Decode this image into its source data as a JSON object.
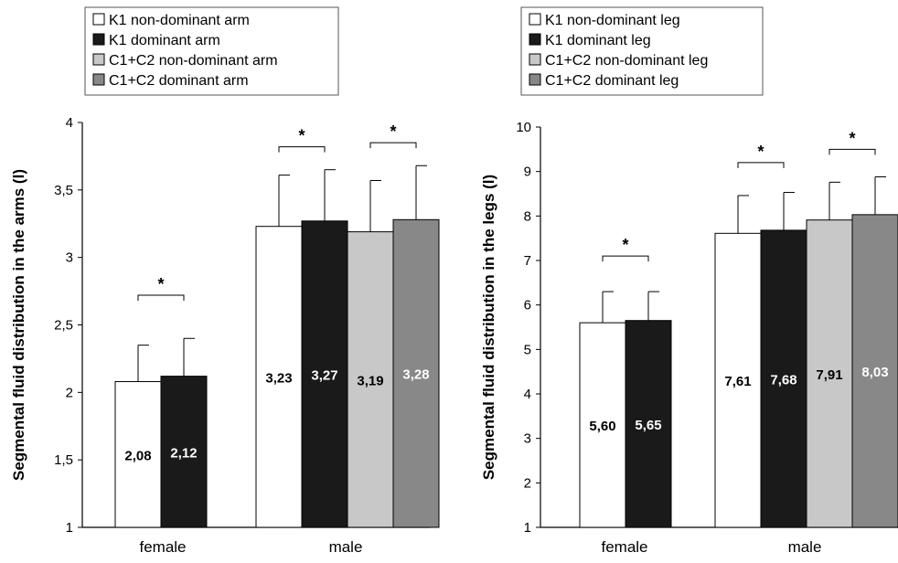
{
  "chart_data": [
    {
      "type": "bar",
      "panel": "arms",
      "ylabel": "Segmental fluid distribution in the arms (l)",
      "ylim": [
        1,
        4
      ],
      "yticks": [
        "1",
        "1,5",
        "2",
        "2,5",
        "3",
        "3,5",
        "4"
      ],
      "ytick_values": [
        1,
        1.5,
        2,
        2.5,
        3,
        3.5,
        4
      ],
      "grid": false,
      "legend_position": "top-left, outside",
      "categories": [
        "female",
        "male"
      ],
      "series": [
        {
          "name": "K1 non-dominant arm",
          "color": "#ffffff",
          "label_color": "#000000",
          "values": [
            2.08,
            3.23
          ],
          "errors": [
            0.27,
            0.38
          ],
          "labels": [
            "2,08",
            "3,23"
          ]
        },
        {
          "name": "K1 dominant arm",
          "color": "#1a1a1a",
          "label_color": "#ffffff",
          "values": [
            2.12,
            3.27
          ],
          "errors": [
            0.28,
            0.38
          ],
          "labels": [
            "2,12",
            "3,27"
          ]
        },
        {
          "name": "C1+C2 non-dominant arm",
          "color": "#c8c8c8",
          "label_color": "#000000",
          "values": [
            null,
            3.19
          ],
          "errors": [
            null,
            0.38
          ],
          "labels": [
            null,
            "3,19"
          ]
        },
        {
          "name": "C1+C2 dominant arm",
          "color": "#888888",
          "label_color": "#ffffff",
          "values": [
            null,
            3.28
          ],
          "errors": [
            null,
            0.4
          ],
          "labels": [
            null,
            "3,28"
          ]
        }
      ],
      "significance": [
        {
          "category": 0,
          "from_series": 0,
          "to_series": 1,
          "at": 2.72,
          "symbol": "*"
        },
        {
          "category": 1,
          "from_series": 0,
          "to_series": 1,
          "at": 3.82,
          "symbol": "*"
        },
        {
          "category": 1,
          "from_series": 2,
          "to_series": 3,
          "at": 3.85,
          "symbol": "*"
        }
      ]
    },
    {
      "type": "bar",
      "panel": "legs",
      "ylabel": "Segmental fluid distribution in the legs (l)",
      "ylim": [
        1,
        10
      ],
      "yticks": [
        "1",
        "2",
        "3",
        "4",
        "5",
        "6",
        "7",
        "8",
        "9",
        "10"
      ],
      "ytick_values": [
        1,
        2,
        3,
        4,
        5,
        6,
        7,
        8,
        9,
        10
      ],
      "grid": false,
      "legend_position": "top-left, outside",
      "categories": [
        "female",
        "male"
      ],
      "series": [
        {
          "name": "K1 non-dominant leg",
          "color": "#ffffff",
          "label_color": "#000000",
          "values": [
            5.6,
            7.61
          ],
          "errors": [
            0.7,
            0.85
          ],
          "labels": [
            "5,60",
            "7,61"
          ]
        },
        {
          "name": "K1 dominant leg",
          "color": "#1a1a1a",
          "label_color": "#ffffff",
          "values": [
            5.65,
            7.68
          ],
          "errors": [
            0.65,
            0.85
          ],
          "labels": [
            "5,65",
            "7,68"
          ]
        },
        {
          "name": "C1+C2 non-dominant leg",
          "color": "#c8c8c8",
          "label_color": "#000000",
          "values": [
            null,
            7.91
          ],
          "errors": [
            null,
            0.85
          ],
          "labels": [
            null,
            "7,91"
          ]
        },
        {
          "name": "C1+C2 dominant leg",
          "color": "#888888",
          "label_color": "#ffffff",
          "values": [
            null,
            8.03
          ],
          "errors": [
            null,
            0.85
          ],
          "labels": [
            null,
            "8,03"
          ]
        }
      ],
      "significance": [
        {
          "category": 0,
          "from_series": 0,
          "to_series": 1,
          "at": 7.1,
          "symbol": "*"
        },
        {
          "category": 1,
          "from_series": 0,
          "to_series": 1,
          "at": 9.2,
          "symbol": "*"
        },
        {
          "category": 1,
          "from_series": 2,
          "to_series": 3,
          "at": 9.5,
          "symbol": "*"
        }
      ]
    }
  ]
}
